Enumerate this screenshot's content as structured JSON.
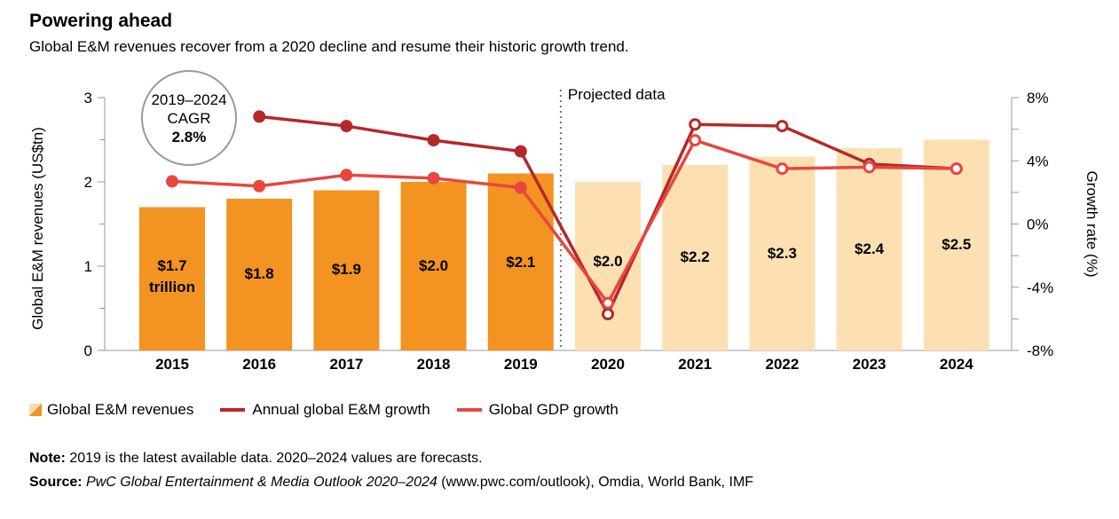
{
  "title": "Powering ahead",
  "subtitle": "Global E&M revenues recover from a 2020 decline and resume their historic growth trend.",
  "chart_data": {
    "type": "bar+line",
    "categories": [
      "2015",
      "2016",
      "2017",
      "2018",
      "2019",
      "2020",
      "2021",
      "2022",
      "2023",
      "2024"
    ],
    "bars": {
      "name": "Global E&M revenues",
      "values": [
        1.7,
        1.8,
        1.9,
        2.0,
        2.1,
        2.0,
        2.2,
        2.3,
        2.4,
        2.5
      ],
      "labels": [
        "$1.7",
        "$1.8",
        "$1.9",
        "$2.0",
        "$2.1",
        "$2.0",
        "$2.2",
        "$2.3",
        "$2.4",
        "$2.5"
      ],
      "first_label_suffix": "trillion",
      "projected_from_index": 5,
      "actual_color": "#f39322",
      "projected_color": "#fde0b2"
    },
    "series": [
      {
        "name": "Annual global E&M growth",
        "color": "#b5282a",
        "values": [
          null,
          6.8,
          6.2,
          5.3,
          4.6,
          -5.7,
          6.3,
          6.2,
          3.8,
          3.5
        ]
      },
      {
        "name": "Global GDP growth",
        "color": "#e8463f",
        "values": [
          2.7,
          2.4,
          3.1,
          2.9,
          2.3,
          -5.0,
          5.3,
          3.5,
          3.6,
          3.5
        ]
      }
    ],
    "y_left": {
      "label": "Global E&M revenues (US$tn)",
      "min": 0,
      "max": 3,
      "ticks": [
        0,
        1,
        2,
        3
      ],
      "tick_labels": [
        "0",
        "1",
        "2",
        "3"
      ]
    },
    "y_right": {
      "label": "Growth rate (%)",
      "min": -8,
      "max": 8,
      "ticks": [
        -8,
        -4,
        0,
        4,
        8
      ],
      "tick_labels": [
        "-8%",
        "-4%",
        "0%",
        "4%",
        "8%"
      ]
    },
    "annotation": {
      "line1": "2019–2024",
      "line2": "CAGR",
      "value": "2.8%"
    },
    "projected_label": "Projected data"
  },
  "legend": {
    "bars_label": "Global E&M revenues",
    "line1_label": "Annual global E&M growth",
    "line2_label": "Global GDP growth"
  },
  "note": {
    "label": "Note:",
    "text": " 2019 is the latest available data. 2020–2024 values are forecasts."
  },
  "source": {
    "label": "Source:",
    "italic": "PwC Global Entertainment & Media Outlook 2020–2024",
    "text": " (www.pwc.com/outlook), Omdia, World Bank, IMF"
  }
}
